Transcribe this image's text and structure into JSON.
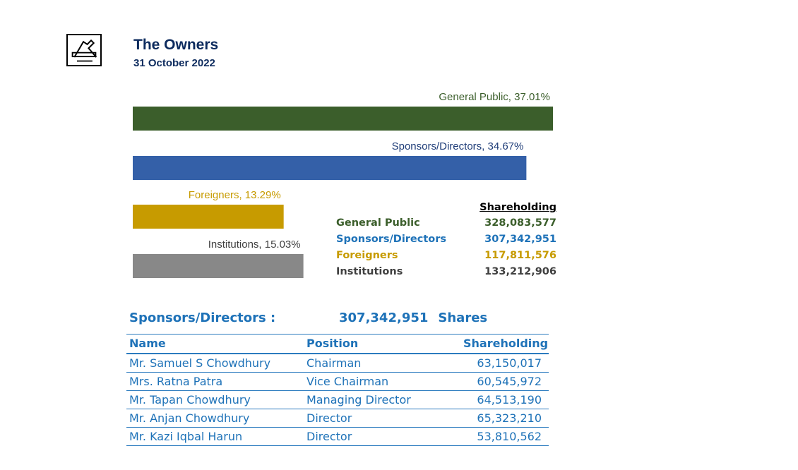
{
  "header": {
    "title": "The Owners",
    "date": "31 October 2022",
    "logo_icon": "company-logo-icon"
  },
  "colors": {
    "navy": "#0d2b5e",
    "general_public": "#3b5e2b",
    "sponsors": "#3460a8",
    "foreigners": "#c79b00",
    "institutions": "#888888",
    "table_blue": "#1e72b8"
  },
  "chart_data": {
    "type": "bar",
    "orientation": "horizontal",
    "categories": [
      "General Public",
      "Sponsors/Directors",
      "Foreigners",
      "Institutions"
    ],
    "values": [
      37.01,
      34.67,
      13.29,
      15.03
    ],
    "labels": [
      "General Public, 37.01%",
      "Sponsors/Directors, 34.67%",
      "Foreigners, 13.29%",
      "Institutions, 15.03%"
    ],
    "xlim": [
      0,
      37.01
    ],
    "grid": false,
    "legend": "none"
  },
  "shareholding_summary": {
    "header": "Shareholding",
    "rows": [
      {
        "label": "General Public",
        "value": "328,083,577"
      },
      {
        "label": "Sponsors/Directors",
        "value": "307,342,951"
      },
      {
        "label": "Foreigners",
        "value": "117,811,576"
      },
      {
        "label": "Institutions",
        "value": "133,212,906"
      }
    ]
  },
  "sponsors": {
    "heading": "Sponsors/Directors :",
    "total": "307,342,951",
    "total_unit": "Shares",
    "columns": [
      "Name",
      "Position",
      "Shareholding"
    ],
    "rows": [
      [
        "Mr. Samuel S Chowdhury",
        "Chairman",
        "63,150,017"
      ],
      [
        "Mrs. Ratna Patra",
        "Vice Chairman",
        "60,545,972"
      ],
      [
        "Mr. Tapan Chowdhury",
        "Managing Director",
        "64,513,190"
      ],
      [
        "Mr. Anjan Chowdhury",
        "Director",
        "65,323,210"
      ],
      [
        "Mr. Kazi Iqbal Harun",
        "Director",
        "53,810,562"
      ]
    ]
  }
}
